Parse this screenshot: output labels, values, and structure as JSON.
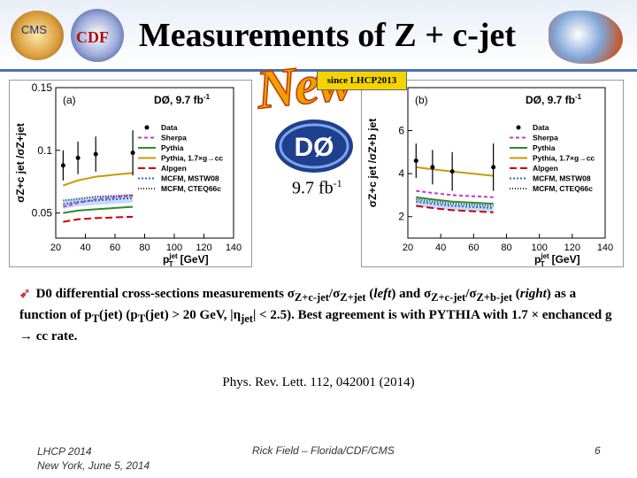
{
  "slide": {
    "title": "Measurements of Z + c-jet",
    "new_label": "New",
    "since_label": "since LHCP2013",
    "logos": {
      "cms": "CMS",
      "cdf": "CDF",
      "d0": "DØ"
    },
    "luminosity": "9.7 fb",
    "luminosity_sup": "-1",
    "bullet_icon": "arrow-icon",
    "bullet": {
      "p1": "D0 differential cross-sections measurements σ",
      "s1": "Z+c-jet",
      "p2": "/σ",
      "s2": "Z+jet",
      "p3": " (",
      "left": "left",
      "p4": ") and σ",
      "s3": "Z+c-jet",
      "p5": "/σ",
      "s4": "Z+b-jet",
      "p6": " (",
      "right": "right",
      "p7": ") as a function of p",
      "s5": "T",
      "p8": "(jet) (p",
      "s6": "T",
      "p9": "(jet) > 20 GeV, |η",
      "s7": "jet",
      "p10": "| < 2.5).  Best agreement is with PYTHIA with 1.7 × enchanced g → cc rate."
    },
    "citation": "Phys. Rev. Lett. 112, 042001 (2014)",
    "footer": {
      "left_line1": "LHCP 2014",
      "left_line2": "New York, June 5, 2014",
      "center": "Rick Field – Florida/CDF/CMS",
      "right": "6"
    }
  },
  "colors": {
    "accent": "#4a6fb3",
    "data": "#000000",
    "sherpa": "#cc33cc",
    "pythia": "#2e8b2e",
    "pythia17": "#c99a00",
    "alpgen": "#cc0000",
    "mcfm1": "#1f6fd6",
    "mcfm2": "#333333"
  },
  "chart_data": [
    {
      "type": "line",
      "panel": "(a)",
      "experiment_label": "DØ, 9.7 fb",
      "experiment_sup": "-1",
      "ylabel": "σZ+c jet /σZ+jet",
      "xlabel": "p",
      "xlabel_sup": "jet",
      "xlabel_sub": "T",
      "xlabel_unit": "[GeV]",
      "xlim": [
        20,
        140
      ],
      "ylim": [
        0.03,
        0.15
      ],
      "x_ticks": [
        20,
        40,
        60,
        80,
        100,
        120,
        140
      ],
      "y_ticks": [
        0.05,
        0.1,
        0.15
      ],
      "y_tick_labels": [
        "0.05",
        "0.1",
        "0.15"
      ],
      "x": [
        25,
        35,
        47,
        72
      ],
      "series": [
        {
          "name": "Data",
          "values": [
            0.088,
            0.094,
            0.097,
            0.098
          ],
          "errors": [
            0.012,
            0.013,
            0.014,
            0.018
          ]
        },
        {
          "name": "Sherpa",
          "values": [
            0.055,
            0.058,
            0.061,
            0.064
          ]
        },
        {
          "name": "Pythia",
          "values": [
            0.05,
            0.052,
            0.053,
            0.055
          ]
        },
        {
          "name": "Pythia, 1.7×g→cc",
          "values": [
            0.072,
            0.076,
            0.079,
            0.082
          ]
        },
        {
          "name": "Alpgen",
          "values": [
            0.043,
            0.045,
            0.046,
            0.047
          ]
        },
        {
          "name": "MCFM, MSTW08",
          "values": [
            0.057,
            0.059,
            0.06,
            0.062
          ]
        },
        {
          "name": "MCFM, CTEQ66c",
          "values": [
            0.06,
            0.061,
            0.063,
            0.064
          ]
        }
      ],
      "legend_position": "right"
    },
    {
      "type": "line",
      "panel": "(b)",
      "experiment_label": "DØ, 9.7 fb",
      "experiment_sup": "-1",
      "ylabel": "σZ+c jet /σZ+b jet",
      "xlabel": "p",
      "xlabel_sup": "jet",
      "xlabel_sub": "T",
      "xlabel_unit": "[GeV]",
      "xlim": [
        20,
        140
      ],
      "ylim": [
        1,
        8
      ],
      "x_ticks": [
        20,
        40,
        60,
        80,
        100,
        120,
        140
      ],
      "y_ticks": [
        2,
        4,
        6
      ],
      "y_tick_labels": [
        "2",
        "4",
        "6"
      ],
      "x": [
        25,
        35,
        47,
        72
      ],
      "series": [
        {
          "name": "Data",
          "values": [
            4.6,
            4.3,
            4.1,
            4.3
          ],
          "errors": [
            0.8,
            0.8,
            0.9,
            1.1
          ]
        },
        {
          "name": "Sherpa",
          "values": [
            3.2,
            3.1,
            3.0,
            2.9
          ]
        },
        {
          "name": "Pythia",
          "values": [
            2.9,
            2.8,
            2.7,
            2.6
          ]
        },
        {
          "name": "Pythia, 1.7×g→cc",
          "values": [
            4.3,
            4.2,
            4.1,
            3.9
          ]
        },
        {
          "name": "Alpgen",
          "values": [
            2.5,
            2.4,
            2.3,
            2.2
          ]
        },
        {
          "name": "MCFM, MSTW08",
          "values": [
            2.7,
            2.6,
            2.5,
            2.4
          ]
        },
        {
          "name": "MCFM, CTEQ66c",
          "values": [
            2.8,
            2.7,
            2.6,
            2.5
          ]
        }
      ],
      "legend_position": "right"
    }
  ]
}
